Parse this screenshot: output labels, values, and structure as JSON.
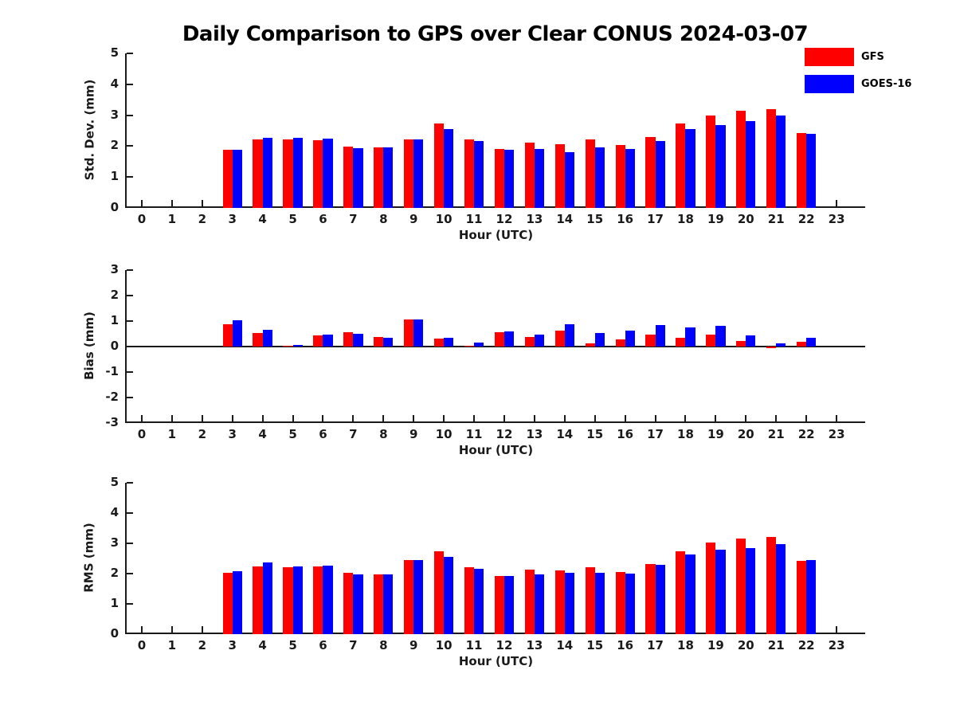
{
  "title": "Daily Comparison to GPS over Clear CONUS 2024-03-07",
  "legend": {
    "items": [
      {
        "label": "GFS",
        "color": "#ff0000"
      },
      {
        "label": "GOES-16",
        "color": "#0000ff"
      }
    ]
  },
  "colors": {
    "gfs": "#ff0000",
    "goes16": "#0000ff",
    "axis": "#1a1a1a",
    "background": "#ffffff"
  },
  "chart_data": [
    {
      "type": "bar",
      "ylabel": "Std. Dev. (mm)",
      "xlabel": "Hour (UTC)",
      "ylim": [
        0,
        5
      ],
      "yticks": [
        0,
        1,
        2,
        3,
        4,
        5
      ],
      "xlim": [
        -0.5,
        24.0
      ],
      "categories": [
        0,
        1,
        2,
        3,
        4,
        5,
        6,
        7,
        8,
        9,
        10,
        11,
        12,
        13,
        14,
        15,
        16,
        17,
        18,
        19,
        20,
        21,
        22,
        23
      ],
      "bar_width": 0.32,
      "grid": false,
      "legend_position": "upper right",
      "series": [
        {
          "name": "GFS",
          "color": "#ff0000",
          "values": [
            null,
            null,
            null,
            1.87,
            2.22,
            2.22,
            2.19,
            1.98,
            1.97,
            2.22,
            2.73,
            2.21,
            1.9,
            2.12,
            2.05,
            2.22,
            2.04,
            2.29,
            2.74,
            2.98,
            3.14,
            3.2,
            2.42,
            null
          ]
        },
        {
          "name": "GOES-16",
          "color": "#0000ff",
          "values": [
            null,
            null,
            null,
            1.87,
            2.28,
            2.27,
            2.25,
            1.94,
            1.96,
            2.21,
            2.55,
            2.16,
            1.87,
            1.92,
            1.81,
            1.96,
            1.92,
            2.17,
            2.56,
            2.68,
            2.82,
            2.99,
            2.4,
            null
          ]
        }
      ]
    },
    {
      "type": "bar",
      "ylabel": "Bias (mm)",
      "xlabel": "Hour (UTC)",
      "ylim": [
        -3,
        3
      ],
      "yticks": [
        -3,
        -2,
        -1,
        0,
        1,
        2,
        3
      ],
      "xlim": [
        -0.5,
        24.0
      ],
      "categories": [
        0,
        1,
        2,
        3,
        4,
        5,
        6,
        7,
        8,
        9,
        10,
        11,
        12,
        13,
        14,
        15,
        16,
        17,
        18,
        19,
        20,
        21,
        22,
        23
      ],
      "bar_width": 0.32,
      "grid": false,
      "zero_line": true,
      "series": [
        {
          "name": "GFS",
          "color": "#ff0000",
          "values": [
            null,
            null,
            null,
            0.87,
            0.52,
            0.02,
            0.45,
            0.56,
            0.39,
            1.05,
            0.3,
            0.02,
            0.55,
            0.38,
            0.62,
            0.14,
            0.28,
            0.46,
            0.35,
            0.48,
            0.21,
            -0.07,
            0.18,
            null
          ]
        },
        {
          "name": "GOES-16",
          "color": "#0000ff",
          "values": [
            null,
            null,
            null,
            1.03,
            0.65,
            0.05,
            0.48,
            0.51,
            0.35,
            1.05,
            0.33,
            0.15,
            0.6,
            0.46,
            0.86,
            0.52,
            0.64,
            0.84,
            0.75,
            0.8,
            0.44,
            0.14,
            0.35,
            null
          ]
        }
      ]
    },
    {
      "type": "bar",
      "ylabel": "RMS (mm)",
      "xlabel": "Hour (UTC)",
      "ylim": [
        0,
        5
      ],
      "yticks": [
        0,
        1,
        2,
        3,
        4,
        5
      ],
      "xlim": [
        -0.5,
        24.0
      ],
      "categories": [
        0,
        1,
        2,
        3,
        4,
        5,
        6,
        7,
        8,
        9,
        10,
        11,
        12,
        13,
        14,
        15,
        16,
        17,
        18,
        19,
        20,
        21,
        22,
        23
      ],
      "bar_width": 0.32,
      "grid": false,
      "series": [
        {
          "name": "GFS",
          "color": "#ff0000",
          "values": [
            null,
            null,
            null,
            2.03,
            2.24,
            2.21,
            2.24,
            2.03,
            1.98,
            2.45,
            2.74,
            2.22,
            1.92,
            2.14,
            2.11,
            2.22,
            2.06,
            2.32,
            2.74,
            3.02,
            3.16,
            3.21,
            2.43,
            null
          ]
        },
        {
          "name": "GOES-16",
          "color": "#0000ff",
          "values": [
            null,
            null,
            null,
            2.08,
            2.36,
            2.25,
            2.27,
            1.97,
            1.98,
            2.44,
            2.55,
            2.16,
            1.91,
            1.97,
            2.02,
            2.02,
            1.99,
            2.3,
            2.64,
            2.79,
            2.85,
            2.97,
            2.44,
            null
          ]
        }
      ]
    }
  ]
}
